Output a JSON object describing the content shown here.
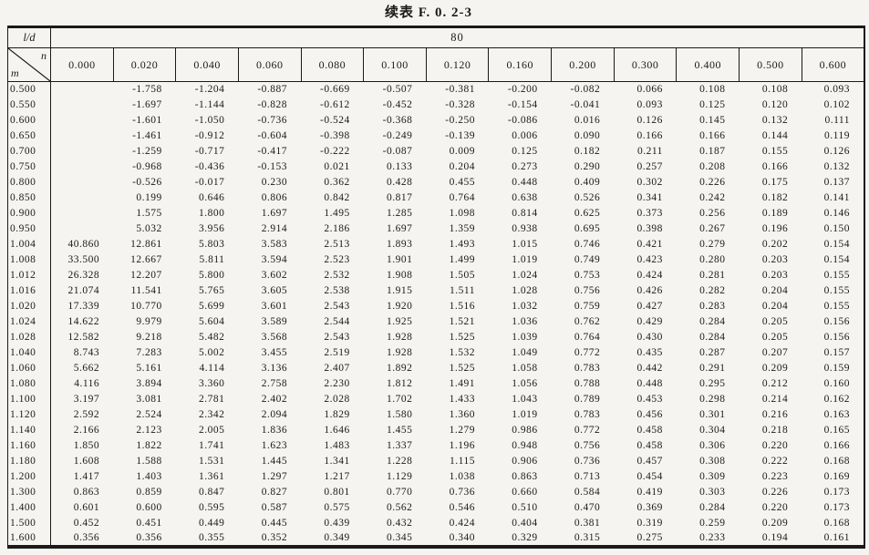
{
  "title": "续表 F. 0. 2-3",
  "colors": {
    "ink": "#1a1a1a",
    "paper": "#f5f4f0"
  },
  "table": {
    "corner_label": "l/d",
    "span_value": "80",
    "diag_top": "n",
    "diag_bottom": "m",
    "columns": [
      "0.000",
      "0.020",
      "0.040",
      "0.060",
      "0.080",
      "0.100",
      "0.120",
      "0.160",
      "0.200",
      "0.300",
      "0.400",
      "0.500",
      "0.600"
    ],
    "rows": [
      {
        "m": "0.500",
        "values": [
          "",
          "-1.758",
          "-1.204",
          "-0.887",
          "-0.669",
          "-0.507",
          "-0.381",
          "-0.200",
          "-0.082",
          "0.066",
          "0.108",
          "0.108",
          "0.093"
        ]
      },
      {
        "m": "0.550",
        "values": [
          "",
          "-1.697",
          "-1.144",
          "-0.828",
          "-0.612",
          "-0.452",
          "-0.328",
          "-0.154",
          "-0.041",
          "0.093",
          "0.125",
          "0.120",
          "0.102"
        ]
      },
      {
        "m": "0.600",
        "values": [
          "",
          "-1.601",
          "-1.050",
          "-0.736",
          "-0.524",
          "-0.368",
          "-0.250",
          "-0.086",
          "0.016",
          "0.126",
          "0.145",
          "0.132",
          "0.111"
        ]
      },
      {
        "m": "0.650",
        "values": [
          "",
          "-1.461",
          "-0.912",
          "-0.604",
          "-0.398",
          "-0.249",
          "-0.139",
          "0.006",
          "0.090",
          "0.166",
          "0.166",
          "0.144",
          "0.119"
        ]
      },
      {
        "m": "0.700",
        "values": [
          "",
          "-1.259",
          "-0.717",
          "-0.417",
          "-0.222",
          "-0.087",
          "0.009",
          "0.125",
          "0.182",
          "0.211",
          "0.187",
          "0.155",
          "0.126"
        ]
      },
      {
        "m": "0.750",
        "values": [
          "",
          "-0.968",
          "-0.436",
          "-0.153",
          "0.021",
          "0.133",
          "0.204",
          "0.273",
          "0.290",
          "0.257",
          "0.208",
          "0.166",
          "0.132"
        ]
      },
      {
        "m": "0.800",
        "values": [
          "",
          "-0.526",
          "-0.017",
          "0.230",
          "0.362",
          "0.428",
          "0.455",
          "0.448",
          "0.409",
          "0.302",
          "0.226",
          "0.175",
          "0.137"
        ]
      },
      {
        "m": "0.850",
        "values": [
          "",
          "0.199",
          "0.646",
          "0.806",
          "0.842",
          "0.817",
          "0.764",
          "0.638",
          "0.526",
          "0.341",
          "0.242",
          "0.182",
          "0.141"
        ]
      },
      {
        "m": "0.900",
        "values": [
          "",
          "1.575",
          "1.800",
          "1.697",
          "1.495",
          "1.285",
          "1.098",
          "0.814",
          "0.625",
          "0.373",
          "0.256",
          "0.189",
          "0.146"
        ]
      },
      {
        "m": "0.950",
        "values": [
          "",
          "5.032",
          "3.956",
          "2.914",
          "2.186",
          "1.697",
          "1.359",
          "0.938",
          "0.695",
          "0.398",
          "0.267",
          "0.196",
          "0.150"
        ]
      },
      {
        "m": "1.004",
        "values": [
          "40.860",
          "12.861",
          "5.803",
          "3.583",
          "2.513",
          "1.893",
          "1.493",
          "1.015",
          "0.746",
          "0.421",
          "0.279",
          "0.202",
          "0.154"
        ]
      },
      {
        "m": "1.008",
        "values": [
          "33.500",
          "12.667",
          "5.811",
          "3.594",
          "2.523",
          "1.901",
          "1.499",
          "1.019",
          "0.749",
          "0.423",
          "0.280",
          "0.203",
          "0.154"
        ]
      },
      {
        "m": "1.012",
        "values": [
          "26.328",
          "12.207",
          "5.800",
          "3.602",
          "2.532",
          "1.908",
          "1.505",
          "1.024",
          "0.753",
          "0.424",
          "0.281",
          "0.203",
          "0.155"
        ]
      },
      {
        "m": "1.016",
        "values": [
          "21.074",
          "11.541",
          "5.765",
          "3.605",
          "2.538",
          "1.915",
          "1.511",
          "1.028",
          "0.756",
          "0.426",
          "0.282",
          "0.204",
          "0.155"
        ]
      },
      {
        "m": "1.020",
        "values": [
          "17.339",
          "10.770",
          "5.699",
          "3.601",
          "2.543",
          "1.920",
          "1.516",
          "1.032",
          "0.759",
          "0.427",
          "0.283",
          "0.204",
          "0.155"
        ]
      },
      {
        "m": "1.024",
        "values": [
          "14.622",
          "9.979",
          "5.604",
          "3.589",
          "2.544",
          "1.925",
          "1.521",
          "1.036",
          "0.762",
          "0.429",
          "0.284",
          "0.205",
          "0.156"
        ]
      },
      {
        "m": "1.028",
        "values": [
          "12.582",
          "9.218",
          "5.482",
          "3.568",
          "2.543",
          "1.928",
          "1.525",
          "1.039",
          "0.764",
          "0.430",
          "0.284",
          "0.205",
          "0.156"
        ]
      },
      {
        "m": "1.040",
        "values": [
          "8.743",
          "7.283",
          "5.002",
          "3.455",
          "2.519",
          "1.928",
          "1.532",
          "1.049",
          "0.772",
          "0.435",
          "0.287",
          "0.207",
          "0.157"
        ]
      },
      {
        "m": "1.060",
        "values": [
          "5.662",
          "5.161",
          "4.114",
          "3.136",
          "2.407",
          "1.892",
          "1.525",
          "1.058",
          "0.783",
          "0.442",
          "0.291",
          "0.209",
          "0.159"
        ]
      },
      {
        "m": "1.080",
        "values": [
          "4.116",
          "3.894",
          "3.360",
          "2.758",
          "2.230",
          "1.812",
          "1.491",
          "1.056",
          "0.788",
          "0.448",
          "0.295",
          "0.212",
          "0.160"
        ]
      },
      {
        "m": "1.100",
        "values": [
          "3.197",
          "3.081",
          "2.781",
          "2.402",
          "2.028",
          "1.702",
          "1.433",
          "1.043",
          "0.789",
          "0.453",
          "0.298",
          "0.214",
          "0.162"
        ]
      },
      {
        "m": "1.120",
        "values": [
          "2.592",
          "2.524",
          "2.342",
          "2.094",
          "1.829",
          "1.580",
          "1.360",
          "1.019",
          "0.783",
          "0.456",
          "0.301",
          "0.216",
          "0.163"
        ]
      },
      {
        "m": "1.140",
        "values": [
          "2.166",
          "2.123",
          "2.005",
          "1.836",
          "1.646",
          "1.455",
          "1.279",
          "0.986",
          "0.772",
          "0.458",
          "0.304",
          "0.218",
          "0.165"
        ]
      },
      {
        "m": "1.160",
        "values": [
          "1.850",
          "1.822",
          "1.741",
          "1.623",
          "1.483",
          "1.337",
          "1.196",
          "0.948",
          "0.756",
          "0.458",
          "0.306",
          "0.220",
          "0.166"
        ]
      },
      {
        "m": "1.180",
        "values": [
          "1.608",
          "1.588",
          "1.531",
          "1.445",
          "1.341",
          "1.228",
          "1.115",
          "0.906",
          "0.736",
          "0.457",
          "0.308",
          "0.222",
          "0.168"
        ]
      },
      {
        "m": "1.200",
        "values": [
          "1.417",
          "1.403",
          "1.361",
          "1.297",
          "1.217",
          "1.129",
          "1.038",
          "0.863",
          "0.713",
          "0.454",
          "0.309",
          "0.223",
          "0.169"
        ]
      },
      {
        "m": "1.300",
        "values": [
          "0.863",
          "0.859",
          "0.847",
          "0.827",
          "0.801",
          "0.770",
          "0.736",
          "0.660",
          "0.584",
          "0.419",
          "0.303",
          "0.226",
          "0.173"
        ]
      },
      {
        "m": "1.400",
        "values": [
          "0.601",
          "0.600",
          "0.595",
          "0.587",
          "0.575",
          "0.562",
          "0.546",
          "0.510",
          "0.470",
          "0.369",
          "0.284",
          "0.220",
          "0.173"
        ]
      },
      {
        "m": "1.500",
        "values": [
          "0.452",
          "0.451",
          "0.449",
          "0.445",
          "0.439",
          "0.432",
          "0.424",
          "0.404",
          "0.381",
          "0.319",
          "0.259",
          "0.209",
          "0.168"
        ]
      },
      {
        "m": "1.600",
        "values": [
          "0.356",
          "0.356",
          "0.355",
          "0.352",
          "0.349",
          "0.345",
          "0.340",
          "0.329",
          "0.315",
          "0.275",
          "0.233",
          "0.194",
          "0.161"
        ]
      }
    ]
  }
}
